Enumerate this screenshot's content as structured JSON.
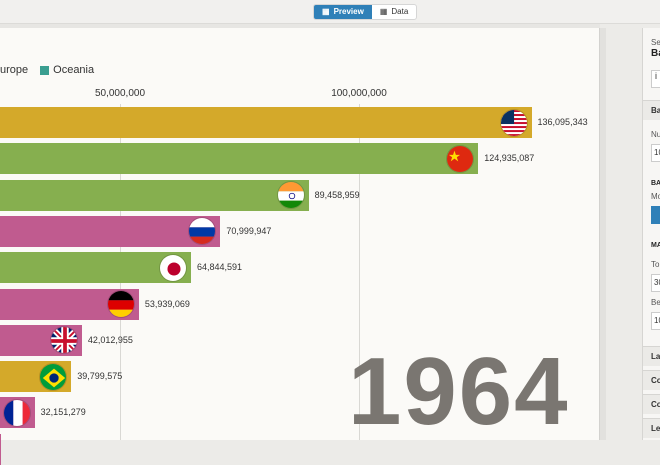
{
  "tabs": {
    "preview": "Preview",
    "data": "Data"
  },
  "legend": [
    {
      "label": "urope",
      "color": "#c05b8f"
    },
    {
      "label": "Oceania",
      "color": "#3a9e90"
    }
  ],
  "chart_data": {
    "type": "bar",
    "orientation": "horizontal",
    "x_ticks": [
      {
        "value": 50000000,
        "label": "50,000,000"
      },
      {
        "value": 100000000,
        "label": "100,000,000"
      }
    ],
    "series": [
      {
        "value": 136095343,
        "label": "136,095,343",
        "color": "#d4a92a",
        "flag": "usa"
      },
      {
        "value": 124935087,
        "label": "124,935,087",
        "color": "#86af4f",
        "flag": "china"
      },
      {
        "value": 89458959,
        "label": "89,458,959",
        "color": "#86af4f",
        "flag": "india"
      },
      {
        "value": 70999947,
        "label": "70,999,947",
        "color": "#c05b8f",
        "flag": "russia"
      },
      {
        "value": 64844591,
        "label": "64,844,591",
        "color": "#86af4f",
        "flag": "japan"
      },
      {
        "value": 53939069,
        "label": "53,939,069",
        "color": "#c05b8f",
        "flag": "germany"
      },
      {
        "value": 42012955,
        "label": "42,012,955",
        "color": "#c05b8f",
        "flag": "uk"
      },
      {
        "value": 39799575,
        "label": "39,799,575",
        "color": "#d4a92a",
        "flag": "brazil"
      },
      {
        "value": 32151279,
        "label": "32,151,279",
        "color": "#c05b8f",
        "flag": "france"
      },
      {
        "value": 25000000,
        "label": "",
        "color": "#c05b8f",
        "flag": "italy"
      }
    ],
    "year": "1964"
  },
  "panel": {
    "select_label": "Sel",
    "select_value": "Ba",
    "info_icon": "i",
    "sections": [
      "Ba",
      "La",
      "Co",
      "Co",
      "Le"
    ],
    "labels": [
      "Nu",
      "BA",
      "Mo",
      "MA",
      "Top",
      "Be"
    ],
    "inputs": [
      "10",
      "30",
      "10"
    ]
  }
}
